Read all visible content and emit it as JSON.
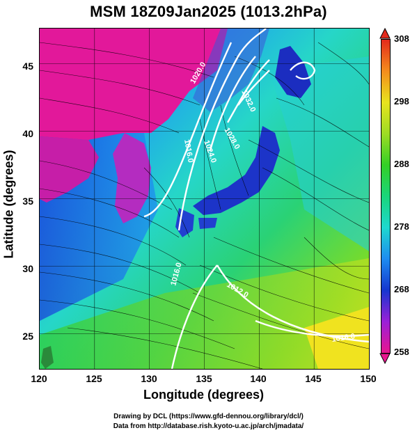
{
  "title": "MSM 18Z09Jan2025 (1013.2hPa)",
  "axes": {
    "xlabel": "Longitude (degrees)",
    "ylabel": "Latitude  (degrees)",
    "xticks": [
      "120",
      "125",
      "130",
      "135",
      "140",
      "145",
      "150"
    ],
    "yticks": [
      "45",
      "40",
      "35",
      "30",
      "25"
    ],
    "xlim": [
      120,
      150
    ],
    "ylim": [
      22.4,
      47.6
    ]
  },
  "colorbar": {
    "ticks": [
      "308",
      "298",
      "288",
      "278",
      "268",
      "258"
    ],
    "range": [
      258,
      308
    ],
    "colors": [
      "#e8168f",
      "#9a20d8",
      "#1636cf",
      "#1e8cf0",
      "#1ed8cf",
      "#19d67a",
      "#34cf26",
      "#9edc24",
      "#e8e31e",
      "#f48c1c",
      "#e32a1c"
    ]
  },
  "contour_labels": [
    "1020.0",
    "1016.0",
    "1024.0",
    "1028.0",
    "1032.0",
    "1016.0",
    "1012.0",
    "1016.0"
  ],
  "credits": {
    "line1": "Drawing by DCL (https://www.gfd-dennou.org/library/dcl/)",
    "line2": "Data from http://database.rish.kyoto-u.ac.jp/arch/jmadata/"
  },
  "chart_data": {
    "type": "heatmap",
    "title": "MSM 18Z09Jan2025 (1013.2hPa)",
    "xlabel": "Longitude (degrees)",
    "ylabel": "Latitude  (degrees)",
    "xlim": [
      120,
      150
    ],
    "ylim": [
      22.4,
      47.6
    ],
    "colorbar_range": [
      258,
      308
    ],
    "grid": true
  }
}
